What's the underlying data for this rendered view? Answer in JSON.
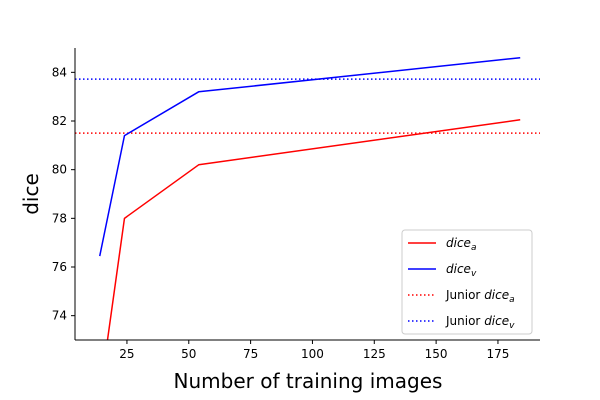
{
  "chart_data": {
    "type": "line",
    "xlabel": "Number of training images",
    "ylabel": "dice",
    "xlim": [
      4,
      192
    ],
    "ylim": [
      73,
      85
    ],
    "x_ticks": [
      25,
      50,
      75,
      100,
      125,
      150,
      175
    ],
    "y_ticks": [
      74,
      76,
      78,
      80,
      82,
      84
    ],
    "grid": false,
    "legend_position": "lower-right",
    "series": [
      {
        "name": "dice_a",
        "legend_main": "dice",
        "legend_sub": "a",
        "color": "#ff0000",
        "style": "solid",
        "x": [
          17,
          24,
          54,
          184
        ],
        "y": [
          72.9,
          78.0,
          80.2,
          82.05
        ]
      },
      {
        "name": "dice_v",
        "legend_main": "dice",
        "legend_sub": "v",
        "color": "#0000ff",
        "style": "solid",
        "x": [
          14,
          24,
          54,
          184
        ],
        "y": [
          76.45,
          81.4,
          83.2,
          84.6
        ]
      }
    ],
    "reference_lines": [
      {
        "name": "Junior dice_a",
        "legend_prefix": "Junior ",
        "legend_main": "dice",
        "legend_sub": "a",
        "color": "#ff0000",
        "style": "dotted",
        "y": 81.5
      },
      {
        "name": "Junior dice_v",
        "legend_prefix": "Junior ",
        "legend_main": "dice",
        "legend_sub": "v",
        "color": "#0000ff",
        "style": "dotted",
        "y": 83.72
      }
    ]
  }
}
